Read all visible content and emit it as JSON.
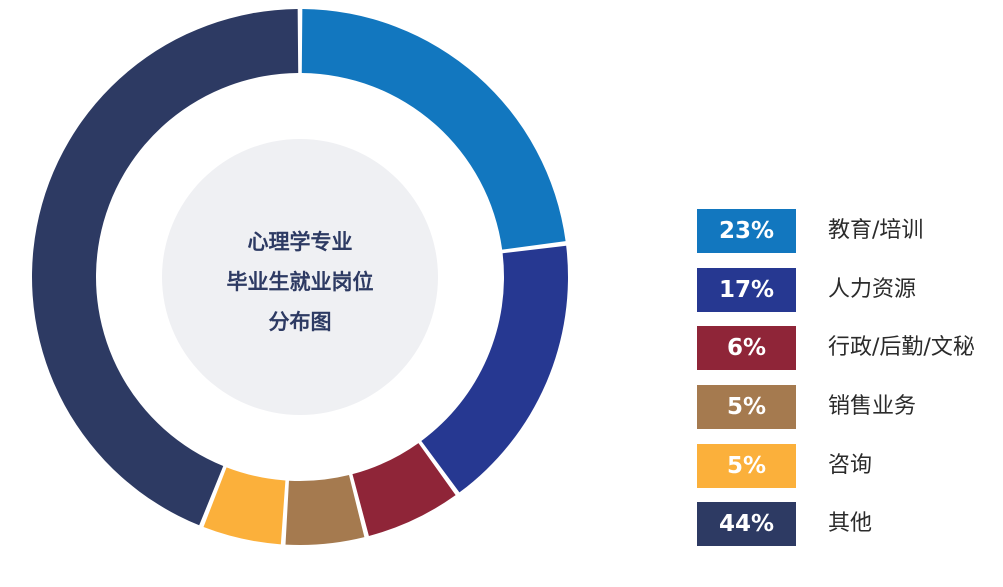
{
  "chart_data": {
    "type": "pie",
    "title": "心理学专业 毕业生就业岗位 分布图",
    "title_lines": [
      "心理学专业",
      "毕业生就业岗位",
      "分布图"
    ],
    "categories": [
      "教育/培训",
      "人力资源",
      "行政/后勤/文秘",
      "销售业务",
      "咨询",
      "其他"
    ],
    "values": [
      23,
      17,
      6,
      5,
      5,
      44
    ],
    "value_labels": [
      "23%",
      "17%",
      "6%",
      "5%",
      "5%",
      "44%"
    ],
    "colors": [
      "#1277bf",
      "#263891",
      "#8f2538",
      "#a57a4f",
      "#fbb03b",
      "#2d3a63"
    ],
    "donut": true,
    "legend_position": "right"
  }
}
